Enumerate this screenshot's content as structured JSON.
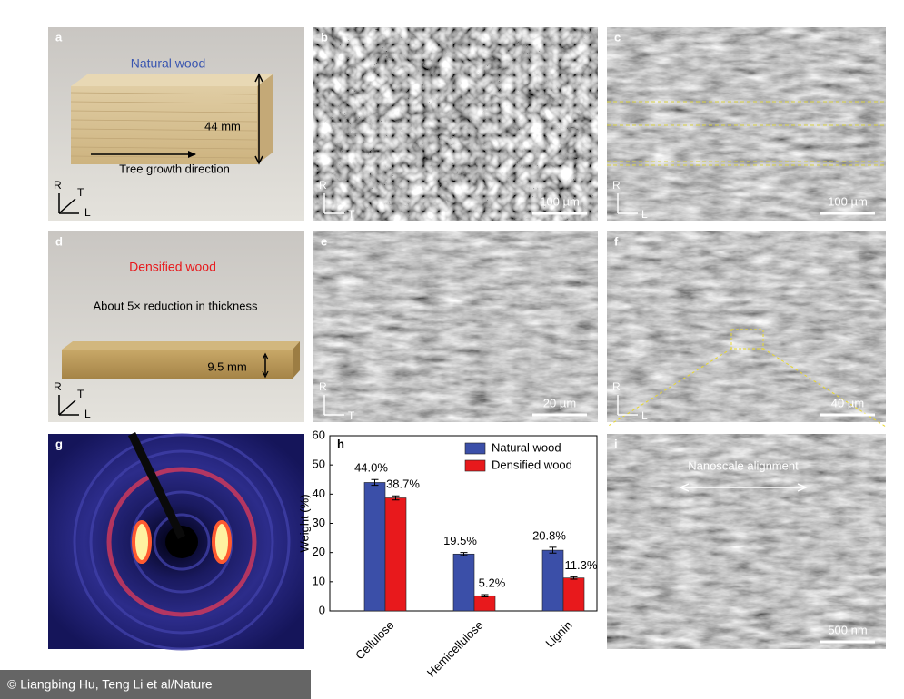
{
  "panels": {
    "a": {
      "label": "a",
      "title": "Natural wood",
      "dimension": "44 mm",
      "direction": "Tree growth direction",
      "axes": [
        "R",
        "T",
        "L"
      ]
    },
    "b": {
      "label": "b",
      "scale_bar": "100 µm",
      "axes": [
        "R",
        "T"
      ]
    },
    "c": {
      "label": "c",
      "scale_bar": "100 µm",
      "axes": [
        "R",
        "L"
      ]
    },
    "d": {
      "label": "d",
      "title": "Densified wood",
      "note": "About 5× reduction in thickness",
      "dimension": "9.5 mm",
      "axes": [
        "R",
        "T",
        "L"
      ]
    },
    "e": {
      "label": "e",
      "scale_bar": "20 µm",
      "axes": [
        "R",
        "T"
      ]
    },
    "f": {
      "label": "f",
      "scale_bar": "40 µm",
      "axes": [
        "R",
        "L"
      ]
    },
    "g": {
      "label": "g"
    },
    "i": {
      "label": "i",
      "annotation": "Nanoscale alignment",
      "scale_bar": "500 nm"
    }
  },
  "chart_data": {
    "type": "bar",
    "label": "h",
    "ylabel": "Weight (%)",
    "categories": [
      "Cellulose",
      "Hemicellulose",
      "Lignin"
    ],
    "series": [
      {
        "name": "Natural wood",
        "color": "#3b4fa8",
        "values": [
          44.0,
          19.5,
          20.8
        ],
        "errors": [
          1.0,
          0.5,
          1.0
        ],
        "value_labels": [
          "44.0%",
          "19.5%",
          "20.8%"
        ]
      },
      {
        "name": "Densified wood",
        "color": "#e8191c",
        "values": [
          38.7,
          5.2,
          11.3
        ],
        "errors": [
          0.7,
          0.4,
          0.4
        ],
        "value_labels": [
          "38.7%",
          "5.2%",
          "11.3%"
        ]
      }
    ],
    "ylim": [
      0,
      60
    ],
    "yticks": [
      0,
      10,
      20,
      30,
      40,
      50,
      60
    ],
    "legend": "upper right"
  },
  "credit": "© Liangbing Hu, Teng Li et al/Nature"
}
